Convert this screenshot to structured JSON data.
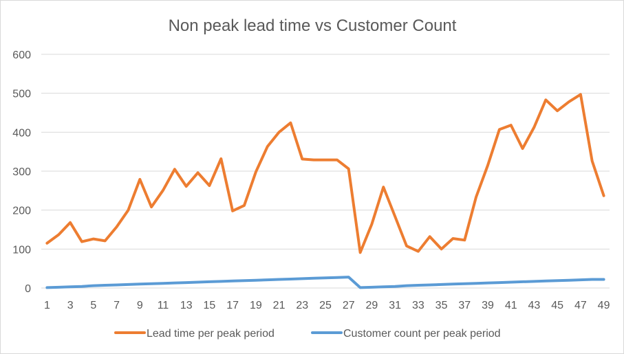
{
  "chart_data": {
    "type": "line",
    "title": "Non peak lead time vs Customer Count",
    "xlabel": "",
    "ylabel": "",
    "ylim": [
      0,
      600
    ],
    "y_ticks": [
      0,
      100,
      200,
      300,
      400,
      500,
      600
    ],
    "x": [
      1,
      2,
      3,
      4,
      5,
      6,
      7,
      8,
      9,
      10,
      11,
      12,
      13,
      14,
      15,
      16,
      17,
      18,
      19,
      20,
      21,
      22,
      23,
      24,
      25,
      26,
      27,
      28,
      29,
      30,
      31,
      32,
      33,
      34,
      35,
      36,
      37,
      38,
      39,
      40,
      41,
      42,
      43,
      44,
      45,
      46,
      47,
      48,
      49
    ],
    "x_tick_labels": [
      "1",
      "3",
      "5",
      "7",
      "9",
      "11",
      "13",
      "15",
      "17",
      "19",
      "21",
      "23",
      "25",
      "27",
      "29",
      "31",
      "33",
      "35",
      "37",
      "39",
      "41",
      "43",
      "45",
      "47",
      "49"
    ],
    "grid": true,
    "legend_position": "bottom",
    "series": [
      {
        "name": "Lead time per peak period",
        "color": "#ed7d31",
        "values": [
          115,
          137,
          168,
          119,
          126,
          121,
          157,
          200,
          279,
          208,
          251,
          305,
          261,
          296,
          263,
          332,
          198,
          212,
          298,
          363,
          400,
          424,
          331,
          329,
          329,
          329,
          306,
          91,
          164,
          259,
          184,
          108,
          94,
          132,
          100,
          127,
          123,
          234,
          315,
          407,
          418,
          358,
          413,
          483,
          455,
          478,
          497,
          326,
          237
        ]
      },
      {
        "name": "Customer count per peak period",
        "color": "#5b9bd5",
        "values": [
          1,
          2,
          3,
          4,
          6,
          7,
          8,
          9,
          10,
          11,
          12,
          13,
          14,
          15,
          16,
          17,
          18,
          19,
          20,
          21,
          22,
          23,
          24,
          25,
          26,
          27,
          28,
          1,
          2,
          3,
          4,
          6,
          7,
          8,
          9,
          10,
          11,
          12,
          13,
          14,
          15,
          16,
          17,
          18,
          19,
          20,
          21,
          22,
          22
        ]
      }
    ]
  }
}
